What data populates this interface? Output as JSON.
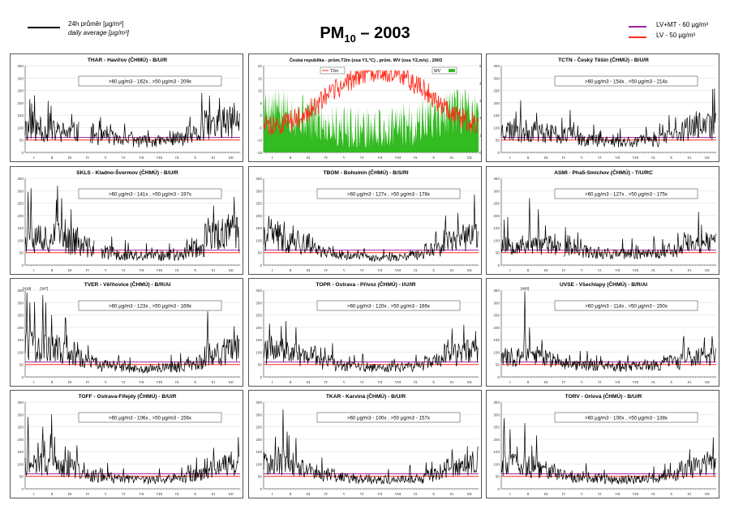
{
  "header": {
    "title_main": "PM",
    "title_sub": "10",
    "title_rest": " – 2003",
    "legend_daily_cz": "24h průměr [µg/m³]",
    "legend_daily_en": "daily average [µg/m³]",
    "legend_lvmt": "LV+MT - 60 µg/m³",
    "legend_lv": "LV    - 50 µg/m³"
  },
  "colors": {
    "lvmt": "#a020a0",
    "lv": "#ff2a1a",
    "series": "#000000",
    "wv": "#33bb22",
    "t2m": "#ff2a1a"
  },
  "chart_data": [
    {
      "type": "line",
      "title": "THAR - Havířov (ČHMÚ) - B/U/R",
      "stats": ">60 µg/m3 - 162x  ,  >50 µg/m3 - 209x",
      "ylim": [
        0,
        350
      ],
      "yticks": [
        0,
        50,
        100,
        150,
        200,
        250,
        300,
        350
      ],
      "months": [
        "I",
        "II",
        "III",
        "IV",
        "V",
        "VI",
        "VII",
        "VIII",
        "IX",
        "X",
        "XI",
        "XII"
      ],
      "seed": 11,
      "base": [
        95,
        85,
        80,
        75,
        60,
        55,
        45,
        45,
        55,
        70,
        110,
        120
      ],
      "amp": 0.55,
      "spikes": [
        [
          8,
          215
        ],
        [
          42,
          160
        ],
        [
          300,
          240
        ],
        [
          330,
          220
        ],
        [
          355,
          200
        ]
      ],
      "gaps": [
        [
          92,
          110
        ]
      ]
    },
    {
      "type": "line+area",
      "title": "Česká republika - prům.T2m (osa Y1,°C) , prům. WV (osa Y2,m/s) , 2003",
      "legend_t": "T2m",
      "legend_wv": "WV",
      "ylim": [
        -15,
        20
      ],
      "y2lim": [
        0,
        5
      ],
      "yticks": [
        -15,
        -10,
        -5,
        0,
        5,
        10,
        15,
        20
      ],
      "y2ticks": [
        0,
        1,
        2,
        3,
        4,
        5
      ],
      "months": [
        "I",
        "II",
        "III",
        "IV",
        "V",
        "VI",
        "VII",
        "VIII",
        "IX",
        "X",
        "XI",
        "XII"
      ],
      "seed": 5
    },
    {
      "type": "line",
      "title": "TCTN - Český Těšín (ČHMÚ) - B/U/R",
      "stats": ">60 µg/m3 - 154x  ,  >50 µg/m3 - 214x",
      "ylim": [
        0,
        350
      ],
      "yticks": [
        0,
        50,
        100,
        150,
        200,
        250,
        300,
        350
      ],
      "months": [
        "I",
        "II",
        "III",
        "IV",
        "V",
        "VI",
        "VII",
        "VIII",
        "IX",
        "X",
        "XI",
        "XII"
      ],
      "seed": 23,
      "base": [
        90,
        85,
        80,
        70,
        55,
        50,
        42,
        45,
        50,
        65,
        95,
        105
      ],
      "amp": 0.55,
      "spikes": [
        [
          25,
          165
        ],
        [
          60,
          160
        ],
        [
          285,
          150
        ],
        [
          320,
          150
        ],
        [
          350,
          145
        ]
      ],
      "gaps": []
    },
    {
      "type": "line",
      "title": "SKLS - Kladno-Švermov (ČHMÚ) - B/U/R",
      "stats": ">60 µg/m3 - 141x  ,  >50 µg/m3 - 197x",
      "ylim": [
        0,
        350
      ],
      "yticks": [
        0,
        50,
        100,
        150,
        200,
        250,
        300,
        350
      ],
      "months": [
        "I",
        "II",
        "III",
        "IV",
        "V",
        "VI",
        "VII",
        "VIII",
        "IX",
        "X",
        "XI",
        "XII"
      ],
      "seed": 37,
      "base": [
        120,
        110,
        100,
        70,
        50,
        40,
        35,
        38,
        45,
        70,
        120,
        130
      ],
      "amp": 0.6,
      "spikes": [
        [
          5,
          295
        ],
        [
          10,
          310
        ],
        [
          55,
          320
        ],
        [
          62,
          270
        ],
        [
          320,
          240
        ],
        [
          355,
          275
        ]
      ],
      "gaps": [
        [
          118,
          128
        ]
      ]
    },
    {
      "type": "line",
      "title": "TBOM - Bohumín (ČHMÚ) - B/S/RI",
      "stats": ">60 µg/m3 - 127x  ,  >50 µg/m3 - 178x",
      "ylim": [
        0,
        350
      ],
      "yticks": [
        0,
        50,
        100,
        150,
        200,
        250,
        300,
        350
      ],
      "months": [
        "I",
        "II",
        "III",
        "IV",
        "V",
        "VI",
        "VII",
        "VIII",
        "IX",
        "X",
        "XI",
        "XII"
      ],
      "seed": 41,
      "base": [
        110,
        95,
        85,
        55,
        40,
        35,
        28,
        30,
        40,
        60,
        95,
        110
      ],
      "amp": 0.5,
      "spikes": [
        [
          20,
          165
        ],
        [
          35,
          175
        ],
        [
          50,
          160
        ],
        [
          330,
          210
        ],
        [
          358,
          285
        ]
      ],
      "gaps": []
    },
    {
      "type": "line",
      "title": "ASMI - Pha5-Smíchov (ČHMÚ) - T/U/RC",
      "stats": ">60 µg/m3 - 127x  ,  >50 µg/m3 - 175x",
      "ylim": [
        0,
        350
      ],
      "yticks": [
        0,
        50,
        100,
        150,
        200,
        250,
        300,
        350
      ],
      "months": [
        "I",
        "II",
        "III",
        "IV",
        "V",
        "VI",
        "VII",
        "VIII",
        "IX",
        "X",
        "XI",
        "XII"
      ],
      "seed": 53,
      "base": [
        85,
        80,
        80,
        65,
        55,
        50,
        45,
        45,
        50,
        60,
        85,
        90
      ],
      "amp": 0.5,
      "spikes": [
        [
          48,
          270
        ],
        [
          63,
          225
        ],
        [
          75,
          160
        ],
        [
          300,
          130
        ]
      ],
      "gaps": [
        [
          102,
          106
        ]
      ]
    },
    {
      "type": "line",
      "title": "TVER - Věřňovice (ČHMÚ) - B/R/AI",
      "stats": ">60 µg/m3 - 123x  ,  >50 µg/m3 - 169x",
      "ylim": [
        0,
        350
      ],
      "yticks": [
        0,
        50,
        100,
        150,
        200,
        250,
        300,
        350
      ],
      "months": [
        "I",
        "II",
        "III",
        "IV",
        "V",
        "VI",
        "VII",
        "VIII",
        "IX",
        "X",
        "XI",
        "XII"
      ],
      "seed": 67,
      "base": [
        130,
        110,
        95,
        60,
        45,
        38,
        32,
        35,
        40,
        55,
        90,
        100
      ],
      "amp": 0.55,
      "spikes": [
        [
          3,
          340
        ],
        [
          8,
          300
        ],
        [
          30,
          330
        ],
        [
          35,
          300
        ],
        [
          45,
          250
        ],
        [
          68,
          240
        ],
        [
          310,
          265
        ],
        [
          355,
          205
        ]
      ],
      "gaps": [],
      "annot": [
        [
          3,
          "[419]"
        ],
        [
          32,
          "[347]"
        ]
      ]
    },
    {
      "type": "line",
      "title": "TOPR - Ostrava - Přívoz (ČHMÚ) - I/U/IR",
      "stats": ">60 µg/m3 - 120x  ,  >50 µg/m3 - 166x",
      "ylim": [
        0,
        350
      ],
      "yticks": [
        0,
        50,
        100,
        150,
        200,
        250,
        300,
        350
      ],
      "months": [
        "I",
        "II",
        "III",
        "IV",
        "V",
        "VI",
        "VII",
        "VIII",
        "IX",
        "X",
        "XI",
        "XII"
      ],
      "seed": 71,
      "base": [
        100,
        95,
        85,
        60,
        45,
        40,
        35,
        38,
        42,
        60,
        90,
        100
      ],
      "amp": 0.5,
      "spikes": [
        [
          10,
          215
        ],
        [
          30,
          205
        ],
        [
          55,
          200
        ],
        [
          320,
          195
        ],
        [
          340,
          210
        ],
        [
          360,
          185
        ]
      ],
      "gaps": []
    },
    {
      "type": "line",
      "title": "UVSE - Všechlapy (ČHMÚ) - B/R/AI",
      "stats": ">60 µg/m3 - 114x  ,  >50 µg/m3 - 150x",
      "ylim": [
        0,
        350
      ],
      "yticks": [
        0,
        50,
        100,
        150,
        200,
        250,
        300,
        350
      ],
      "months": [
        "I",
        "II",
        "III",
        "IV",
        "V",
        "VI",
        "VII",
        "VIII",
        "IX",
        "X",
        "XI",
        "XII"
      ],
      "seed": 83,
      "base": [
        80,
        80,
        75,
        60,
        50,
        45,
        40,
        42,
        48,
        58,
        80,
        85
      ],
      "amp": 0.5,
      "spikes": [
        [
          40,
          345
        ],
        [
          48,
          200
        ],
        [
          310,
          165
        ],
        [
          345,
          160
        ],
        [
          358,
          165
        ]
      ],
      "gaps": [],
      "annot": [
        [
          40,
          "[400]"
        ]
      ]
    },
    {
      "type": "line",
      "title": "TOFF - Ostrava-Fifejdy (ČHMÚ) - B/U/R",
      "stats": ">60 µg/m3 - 106x  ,  >50 µg/m3 - 156x",
      "ylim": [
        0,
        350
      ],
      "yticks": [
        0,
        50,
        100,
        150,
        200,
        250,
        300,
        350
      ],
      "months": [
        "I",
        "II",
        "III",
        "IV",
        "V",
        "VI",
        "VII",
        "VIII",
        "IX",
        "X",
        "XI",
        "XII"
      ],
      "seed": 97,
      "base": [
        100,
        95,
        80,
        55,
        45,
        38,
        34,
        36,
        42,
        55,
        85,
        95
      ],
      "amp": 0.5,
      "spikes": [
        [
          5,
          290
        ],
        [
          30,
          250
        ],
        [
          45,
          300
        ],
        [
          50,
          210
        ],
        [
          320,
          165
        ],
        [
          350,
          150
        ]
      ],
      "gaps": []
    },
    {
      "type": "line",
      "title": "TKAR - Karviná (ČHMÚ) - B/U/R",
      "stats": ">60 µg/m3 - 100x  ,  >50 µg/m3 - 157x",
      "ylim": [
        0,
        350
      ],
      "yticks": [
        0,
        50,
        100,
        150,
        200,
        250,
        300,
        350
      ],
      "months": [
        "I",
        "II",
        "III",
        "IV",
        "V",
        "VI",
        "VII",
        "VIII",
        "IX",
        "X",
        "XI",
        "XII"
      ],
      "seed": 101,
      "base": [
        100,
        90,
        80,
        55,
        45,
        40,
        35,
        38,
        42,
        55,
        85,
        95
      ],
      "amp": 0.5,
      "spikes": [
        [
          20,
          210
        ],
        [
          33,
          320
        ],
        [
          40,
          230
        ],
        [
          55,
          205
        ],
        [
          320,
          160
        ],
        [
          355,
          150
        ]
      ],
      "gaps": []
    },
    {
      "type": "line",
      "title": "TORV - Orlová (ČHMÚ) - B/U/R",
      "stats": ">60 µg/m3 - 100x  ,  >50 µg/m3 - 138x",
      "ylim": [
        0,
        350
      ],
      "yticks": [
        0,
        50,
        100,
        150,
        200,
        250,
        300,
        350
      ],
      "months": [
        "I",
        "II",
        "III",
        "IV",
        "V",
        "VI",
        "VII",
        "VIII",
        "IX",
        "X",
        "XI",
        "XII"
      ],
      "seed": 113,
      "base": [
        95,
        88,
        78,
        55,
        45,
        40,
        35,
        38,
        42,
        55,
        85,
        95
      ],
      "amp": 0.5,
      "spikes": [
        [
          5,
          285
        ],
        [
          15,
          240
        ],
        [
          40,
          265
        ],
        [
          60,
          215
        ],
        [
          320,
          160
        ],
        [
          350,
          150
        ]
      ],
      "gaps": []
    }
  ]
}
